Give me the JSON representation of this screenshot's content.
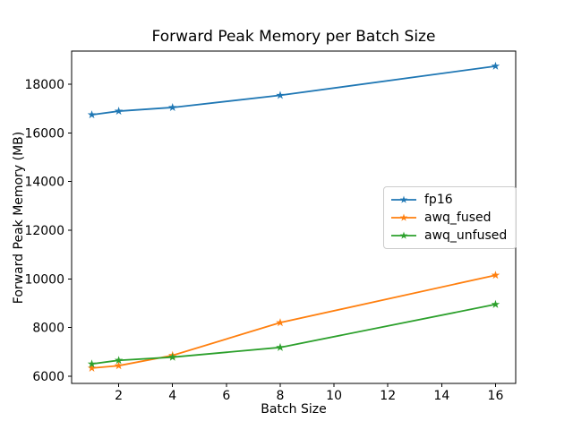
{
  "chart_data": {
    "type": "line",
    "title": "Forward Peak Memory per Batch Size",
    "xlabel": "Batch Size",
    "ylabel": "Forward Peak Memory (MB)",
    "x": [
      1,
      2,
      4,
      8,
      16
    ],
    "series": [
      {
        "name": "fp16",
        "color": "#1f77b4",
        "values": [
          16750,
          16900,
          17050,
          17550,
          18750
        ]
      },
      {
        "name": "awq_fused",
        "color": "#ff7f0e",
        "values": [
          6330,
          6430,
          6850,
          8200,
          10150
        ]
      },
      {
        "name": "awq_unfused",
        "color": "#2ca02c",
        "values": [
          6500,
          6650,
          6780,
          7180,
          8950
        ]
      }
    ],
    "xlim": [
      0.25,
      16.75
    ],
    "ylim": [
      5700,
      19370
    ],
    "xticks": [
      2,
      4,
      6,
      8,
      10,
      12,
      14,
      16
    ],
    "yticks": [
      6000,
      8000,
      10000,
      12000,
      14000,
      16000,
      18000
    ],
    "grid": false,
    "marker": "star",
    "legend_position": "center right",
    "axis_color": "#000000",
    "background_color": "#ffffff",
    "legend_border_color": "#cccccc"
  }
}
